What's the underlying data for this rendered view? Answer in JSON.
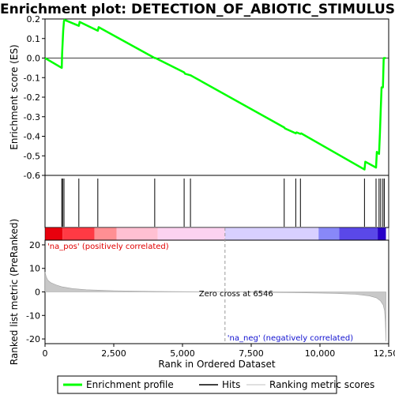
{
  "chart_data": [
    {
      "type": "line",
      "title": "Enrichment plot: DETECTION_OF_ABIOTIC_STIMULUS",
      "ylabel": "Enrichment score (ES)",
      "ylim": [
        -0.6,
        0.2
      ],
      "yticks": [
        "0.2",
        "0.1",
        "0.0",
        "-0.1",
        "-0.2",
        "-0.3",
        "-0.4",
        "-0.5",
        "-0.6"
      ],
      "ytick_values": [
        0.2,
        0.1,
        0.0,
        -0.1,
        -0.2,
        -0.3,
        -0.4,
        -0.5,
        -0.6
      ],
      "xlim": [
        0,
        12500
      ],
      "color": "#00ff00",
      "x": [
        0,
        610,
        620,
        640,
        660,
        690,
        710,
        1230,
        1260,
        1920,
        1950,
        3990,
        4020,
        5060,
        5090,
        5290,
        5320,
        8700,
        8730,
        9120,
        9150,
        9290,
        9320,
        11620,
        11650,
        12040,
        12070,
        12150,
        12180,
        12210,
        12240,
        12290,
        12320,
        12400
      ],
      "y": [
        0.0,
        -0.05,
        0.02,
        0.08,
        0.14,
        0.19,
        0.195,
        0.165,
        0.185,
        0.14,
        0.158,
        0.0,
        0.0,
        -0.073,
        -0.08,
        -0.088,
        -0.09,
        -0.355,
        -0.36,
        -0.385,
        -0.38,
        -0.388,
        -0.385,
        -0.57,
        -0.53,
        -0.56,
        -0.48,
        -0.49,
        -0.385,
        -0.27,
        -0.15,
        -0.15,
        0.0,
        0.0
      ]
    },
    {
      "type": "scatter",
      "name": "Hits",
      "color": "#000000",
      "x": [
        610,
        640,
        690,
        1230,
        1920,
        3990,
        5060,
        5290,
        8700,
        9120,
        9290,
        11620,
        12040,
        12150,
        12210,
        12290,
        12340
      ]
    },
    {
      "type": "heatmap",
      "colors": [
        "#e8000d",
        "#ff3a44",
        "#ff8f93",
        "#ffc0d2",
        "#fcd2f0",
        "#d8d0ff",
        "#8888f8",
        "#5a48e8",
        "#2800c8"
      ],
      "x": [
        0,
        640,
        1800,
        2600,
        4100,
        6546,
        9950,
        10700,
        12100
      ],
      "x_end": [
        640,
        1800,
        2600,
        4100,
        6546,
        9950,
        10700,
        12100,
        12400
      ]
    },
    {
      "type": "area",
      "ylabel": "Ranked list metric (PreRanked)",
      "xlabel": "Rank in Ordered Dataset",
      "ylim": [
        -22,
        22
      ],
      "yticks": [
        "20",
        "10",
        "0",
        "-10",
        "-20"
      ],
      "ytick_values": [
        20,
        10,
        0,
        -10,
        -20
      ],
      "xlim": [
        0,
        12500
      ],
      "xticks": [
        "0",
        "2,500",
        "5,000",
        "7,500",
        "10,000",
        "12,500"
      ],
      "xtick_values": [
        0,
        2500,
        5000,
        7500,
        10000,
        12500
      ],
      "color": "#c8c8c8",
      "x": [
        0,
        40,
        100,
        200,
        400,
        600,
        1000,
        1500,
        2500,
        4000,
        6546,
        9000,
        10500,
        11300,
        11800,
        12050,
        12200,
        12300,
        12350,
        12380,
        12400
      ],
      "y": [
        8.5,
        6.5,
        5.0,
        4.0,
        3.0,
        2.2,
        1.4,
        0.9,
        0.5,
        0.2,
        0.0,
        -0.3,
        -0.6,
        -1.0,
        -1.7,
        -2.5,
        -3.8,
        -5.5,
        -8.0,
        -13.0,
        -21.0
      ],
      "zero_cross_label": "Zero cross at 6546",
      "zero_cross": 6546,
      "pos_label": "'na_pos' (positively correlated)",
      "neg_label": "'na_neg' (negatively correlated)"
    }
  ],
  "legend": {
    "items": [
      {
        "label": "Enrichment profile",
        "color": "#00ff00"
      },
      {
        "label": "Hits",
        "color": "#000000"
      },
      {
        "label": "Ranking metric scores",
        "color": "#c0c0c0"
      }
    ]
  }
}
